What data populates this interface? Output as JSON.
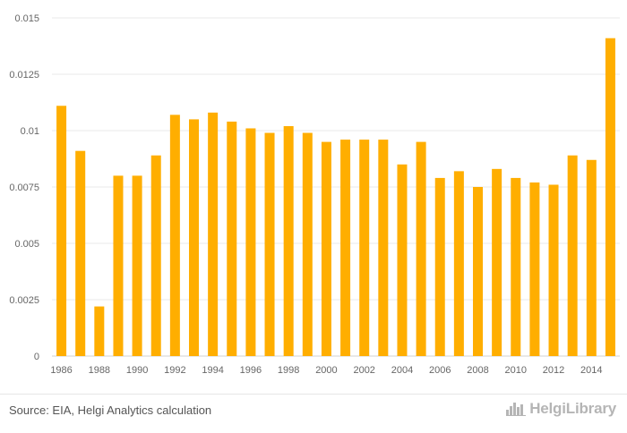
{
  "chart_data": {
    "type": "bar",
    "categories": [
      "1986",
      "1987",
      "1988",
      "1989",
      "1990",
      "1991",
      "1992",
      "1993",
      "1994",
      "1995",
      "1996",
      "1997",
      "1998",
      "1999",
      "2000",
      "2001",
      "2002",
      "2003",
      "2004",
      "2005",
      "2006",
      "2007",
      "2008",
      "2009",
      "2010",
      "2011",
      "2012",
      "2013",
      "2014",
      "2015"
    ],
    "x_tick_labels": [
      "1986",
      "1988",
      "1990",
      "1992",
      "1994",
      "1996",
      "1998",
      "2000",
      "2002",
      "2004",
      "2006",
      "2008",
      "2010",
      "2012",
      "2014"
    ],
    "values": [
      0.0111,
      0.0091,
      0.0022,
      0.008,
      0.008,
      0.0089,
      0.0107,
      0.0105,
      0.0108,
      0.0104,
      0.0101,
      0.0099,
      0.0102,
      0.0099,
      0.0095,
      0.0096,
      0.0096,
      0.0096,
      0.0085,
      0.0095,
      0.0079,
      0.0082,
      0.0075,
      0.0083,
      0.0079,
      0.0077,
      0.0076,
      0.0089,
      0.0087,
      0.0141
    ],
    "y_ticks": [
      0,
      0.0025,
      0.005,
      0.0075,
      0.01,
      0.0125,
      0.015
    ],
    "y_tick_labels": [
      "0",
      "0.0025",
      "0.005",
      "0.0075",
      "0.01",
      "0.0125",
      "0.015"
    ],
    "ylim": [
      0,
      0.015
    ],
    "grid": true,
    "bar_color": "#FFAE00",
    "title": "",
    "xlabel": "",
    "ylabel": ""
  },
  "footer": {
    "source": "Source: EIA, Helgi Analytics calculation",
    "logo_text": "HelgiLibrary",
    "logo_icon": "skyline-icon"
  }
}
